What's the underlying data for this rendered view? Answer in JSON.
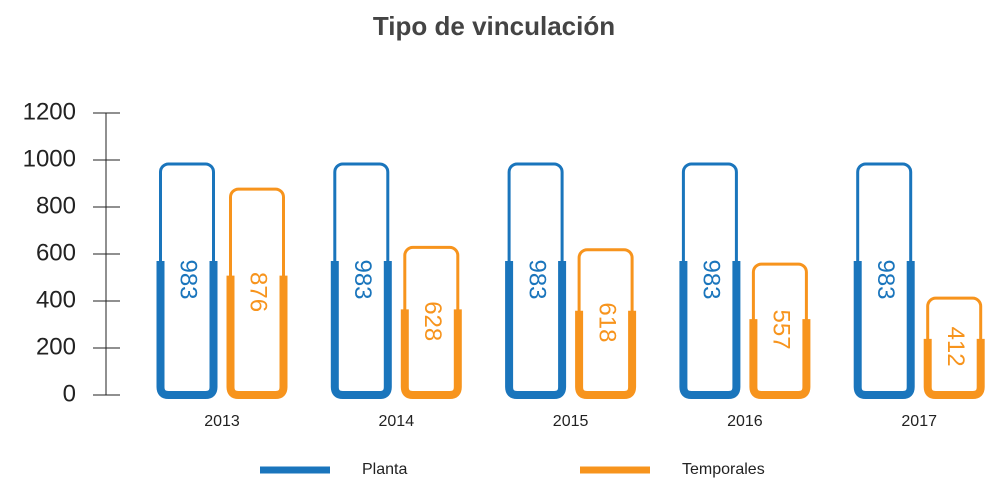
{
  "chart_data": {
    "type": "bar",
    "title": "Tipo de vinculación",
    "categories": [
      "2013",
      "2014",
      "2015",
      "2016",
      "2017"
    ],
    "series": [
      {
        "name": "Planta",
        "color": "#1a75bc",
        "values": [
          983,
          983,
          983,
          983,
          983
        ]
      },
      {
        "name": "Temporales",
        "color": "#f7941d",
        "values": [
          876,
          628,
          618,
          557,
          412
        ]
      }
    ],
    "ylim": [
      0,
      1200
    ],
    "yticks": [
      0,
      200,
      400,
      600,
      800,
      1000,
      1200
    ]
  }
}
